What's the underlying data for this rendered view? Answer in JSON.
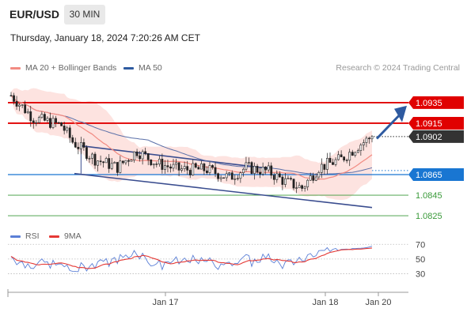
{
  "header": {
    "symbol": "EUR/USD",
    "timeframe": "30 MIN"
  },
  "datetime": "Thursday, January 18, 2024 7:20:26 AM CET",
  "legend": {
    "ma20": {
      "label": "MA 20 + Bollinger Bands",
      "color": "#f28b82"
    },
    "ma50": {
      "label": "MA 50",
      "color": "#2e5aa0"
    }
  },
  "credit": "Research © 2024 Trading Central",
  "rsi_legend": {
    "rsi": {
      "label": "RSI",
      "color": "#5b7fd6"
    },
    "ma9": {
      "label": "9MA",
      "color": "#e53935"
    }
  },
  "chart_data": [
    {
      "type": "candlestick",
      "ylim": [
        1.0812,
        1.0958
      ],
      "last_price": {
        "value": 1.0902,
        "label": "1.0902"
      },
      "levels": [
        {
          "value": 1.0935,
          "label": "1.0935",
          "kind": "resistance",
          "color": "#e00000"
        },
        {
          "value": 1.0915,
          "label": "1.0915",
          "kind": "resistance",
          "color": "#e00000"
        },
        {
          "value": 1.0865,
          "label": "1.0865",
          "kind": "pivot",
          "color": "#1976d2"
        },
        {
          "value": 1.0845,
          "label": "1.0845",
          "kind": "support",
          "color": "#3a9a3a"
        },
        {
          "value": 1.0825,
          "label": "1.0825",
          "kind": "support",
          "color": "#3a9a3a"
        }
      ],
      "x_ticks": [
        "Jan 17",
        "Jan 18",
        "Jan 20"
      ],
      "trend": "bullish"
    },
    {
      "type": "line",
      "ylim": [
        10,
        80
      ],
      "y_ticks": [
        70,
        50,
        30
      ],
      "series": [
        {
          "name": "RSI",
          "color": "#5b7fd6"
        },
        {
          "name": "9MA",
          "color": "#e53935"
        }
      ]
    }
  ]
}
